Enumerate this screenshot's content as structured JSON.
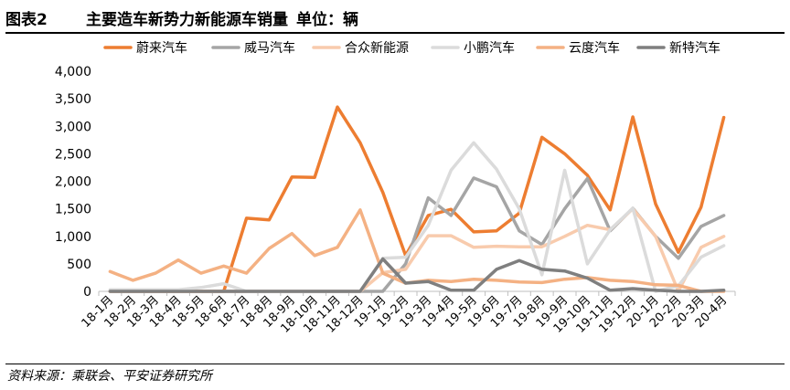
{
  "header": {
    "figure_label": "图表2",
    "title": "主要造车新势力新能源车销量",
    "unit": "单位：辆"
  },
  "footer": {
    "source": "资料来源：乘联会、平安证券研究所"
  },
  "chart_data": {
    "type": "line",
    "title": "",
    "xlabel": "",
    "ylabel": "",
    "ylim": [
      0,
      4000
    ],
    "yticks": [
      0,
      500,
      1000,
      1500,
      2000,
      2500,
      3000,
      3500,
      4000
    ],
    "ytick_labels": [
      "0",
      "500",
      "1,000",
      "1,500",
      "2,000",
      "2,500",
      "3,000",
      "3,500",
      "4,000"
    ],
    "grid": false,
    "legend_position": "top",
    "categories": [
      "18-1月",
      "18-2月",
      "18-3月",
      "18-4月",
      "18-5月",
      "18-6月",
      "18-7月",
      "18-8月",
      "18-9月",
      "18-10月",
      "18-11月",
      "18-12月",
      "19-1月",
      "19-2月",
      "19-3月",
      "19-4月",
      "19-5月",
      "19-6月",
      "19-7月",
      "19-8月",
      "19-9月",
      "19-10月",
      "19-11月",
      "19-12月",
      "20-1月",
      "20-2月",
      "20-3月",
      "20-4月"
    ],
    "series": [
      {
        "name": "蔚来汽车",
        "color": "#ED7D31",
        "values": [
          0,
          0,
          0,
          0,
          0,
          0,
          1330,
          1300,
          2080,
          2070,
          3350,
          2700,
          1800,
          650,
          1380,
          1490,
          1080,
          1100,
          1420,
          2800,
          2500,
          2110,
          1480,
          3170,
          1590,
          710,
          1530,
          3160
        ]
      },
      {
        "name": "威马汽车",
        "color": "#A5A5A5",
        "values": [
          0,
          0,
          0,
          0,
          0,
          0,
          0,
          0,
          0,
          0,
          0,
          0,
          0,
          500,
          1700,
          1380,
          2060,
          1900,
          1100,
          850,
          1500,
          2050,
          1100,
          1510,
          1000,
          600,
          1180,
          1380
        ]
      },
      {
        "name": "合众新能源",
        "color": "#F8CBAD",
        "values": [
          0,
          0,
          0,
          0,
          0,
          0,
          0,
          0,
          0,
          0,
          0,
          0,
          340,
          400,
          1010,
          1010,
          800,
          820,
          810,
          810,
          1000,
          1200,
          1120,
          1500,
          1000,
          0,
          800,
          1000
        ]
      },
      {
        "name": "小鹏汽车",
        "color": "#DBDBDB",
        "values": [
          30,
          30,
          30,
          30,
          70,
          140,
          0,
          0,
          0,
          0,
          0,
          0,
          600,
          620,
          1200,
          2200,
          2700,
          2220,
          1500,
          300,
          2200,
          500,
          1120,
          1510,
          0,
          100,
          620,
          830
        ]
      },
      {
        "name": "云度汽车",
        "color": "#F4B183",
        "values": [
          360,
          200,
          330,
          570,
          330,
          460,
          330,
          780,
          1050,
          650,
          800,
          1480,
          330,
          150,
          200,
          180,
          220,
          200,
          170,
          160,
          220,
          250,
          200,
          180,
          120,
          110,
          0,
          0
        ]
      },
      {
        "name": "新特汽车",
        "color": "#7F7F7F",
        "values": [
          0,
          0,
          0,
          0,
          0,
          0,
          0,
          0,
          0,
          0,
          0,
          0,
          590,
          150,
          180,
          20,
          20,
          400,
          560,
          400,
          370,
          240,
          20,
          50,
          20,
          0,
          0,
          20
        ]
      }
    ]
  }
}
